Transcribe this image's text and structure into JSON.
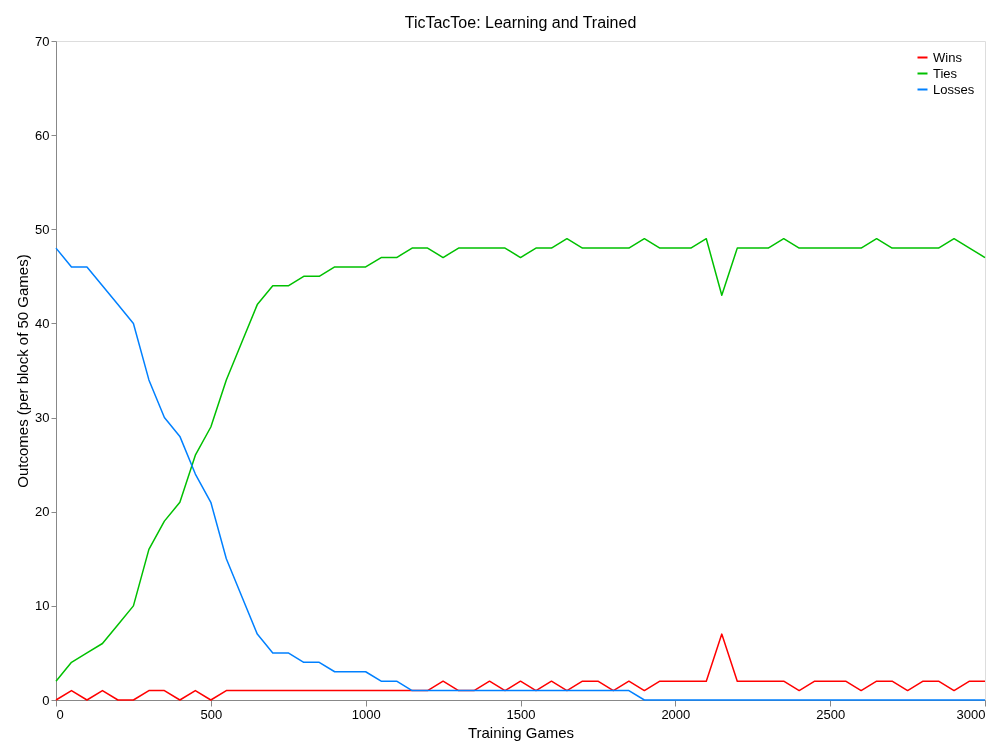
{
  "chart_data": {
    "type": "line",
    "title": "TicTacToe: Learning and Trained",
    "xlabel": "Training Games",
    "ylabel": "Outcomes (per block of 50 Games)",
    "x": [
      0,
      50,
      100,
      150,
      200,
      250,
      300,
      350,
      400,
      450,
      500,
      550,
      600,
      650,
      700,
      750,
      800,
      850,
      900,
      950,
      1000,
      1050,
      1100,
      1150,
      1200,
      1250,
      1300,
      1350,
      1400,
      1450,
      1500,
      1550,
      1600,
      1650,
      1700,
      1750,
      1800,
      1850,
      1900,
      1950,
      2000,
      2050,
      2100,
      2150,
      2200,
      2250,
      2300,
      2350,
      2400,
      2450,
      2500,
      2550,
      2600,
      2650,
      2700,
      2750,
      2800,
      2850,
      2900,
      2950,
      3000
    ],
    "series": [
      {
        "name": "Wins",
        "color": "#ff0000",
        "values": [
          0,
          1,
          0,
          1,
          0,
          0,
          1,
          1,
          0,
          1,
          0,
          1,
          1,
          1,
          1,
          1,
          1,
          1,
          1,
          1,
          1,
          1,
          1,
          1,
          1,
          2,
          1,
          1,
          2,
          1,
          2,
          1,
          2,
          1,
          2,
          2,
          1,
          2,
          1,
          2,
          2,
          2,
          2,
          7,
          2,
          2,
          2,
          2,
          1,
          2,
          2,
          2,
          1,
          2,
          2,
          1,
          2,
          2,
          1,
          2,
          2
        ]
      },
      {
        "name": "Ties",
        "color": "#00c000",
        "values": [
          2,
          4,
          5,
          6,
          8,
          10,
          16,
          19,
          21,
          26,
          29,
          34,
          38,
          42,
          44,
          44,
          45,
          45,
          46,
          46,
          46,
          47,
          47,
          48,
          48,
          47,
          48,
          48,
          48,
          48,
          47,
          48,
          48,
          49,
          48,
          48,
          48,
          48,
          49,
          48,
          48,
          48,
          49,
          43,
          48,
          48,
          48,
          49,
          48,
          48,
          48,
          48,
          48,
          49,
          48,
          48,
          48,
          48,
          49,
          48,
          47
        ]
      },
      {
        "name": "Losses",
        "color": "#0080ff",
        "values": [
          48,
          46,
          46,
          44,
          42,
          40,
          34,
          30,
          28,
          24,
          21,
          15,
          11,
          7,
          5,
          5,
          4,
          4,
          3,
          3,
          3,
          2,
          2,
          1,
          1,
          1,
          1,
          1,
          1,
          1,
          1,
          1,
          1,
          1,
          1,
          1,
          1,
          1,
          0,
          0,
          0,
          0,
          0,
          0,
          0,
          0,
          0,
          0,
          0,
          0,
          0,
          0,
          0,
          0,
          0,
          0,
          0,
          0,
          0,
          0,
          0
        ]
      }
    ],
    "xlim": [
      0,
      3000
    ],
    "xticks": [
      0,
      500,
      1000,
      1500,
      2000,
      2500,
      3000
    ],
    "ylim": [
      0,
      70
    ],
    "yticks": [
      0,
      10,
      20,
      30,
      40,
      50,
      60,
      70
    ],
    "grid": false,
    "legend": "top right",
    "marker": "none",
    "line_style": "solid"
  }
}
